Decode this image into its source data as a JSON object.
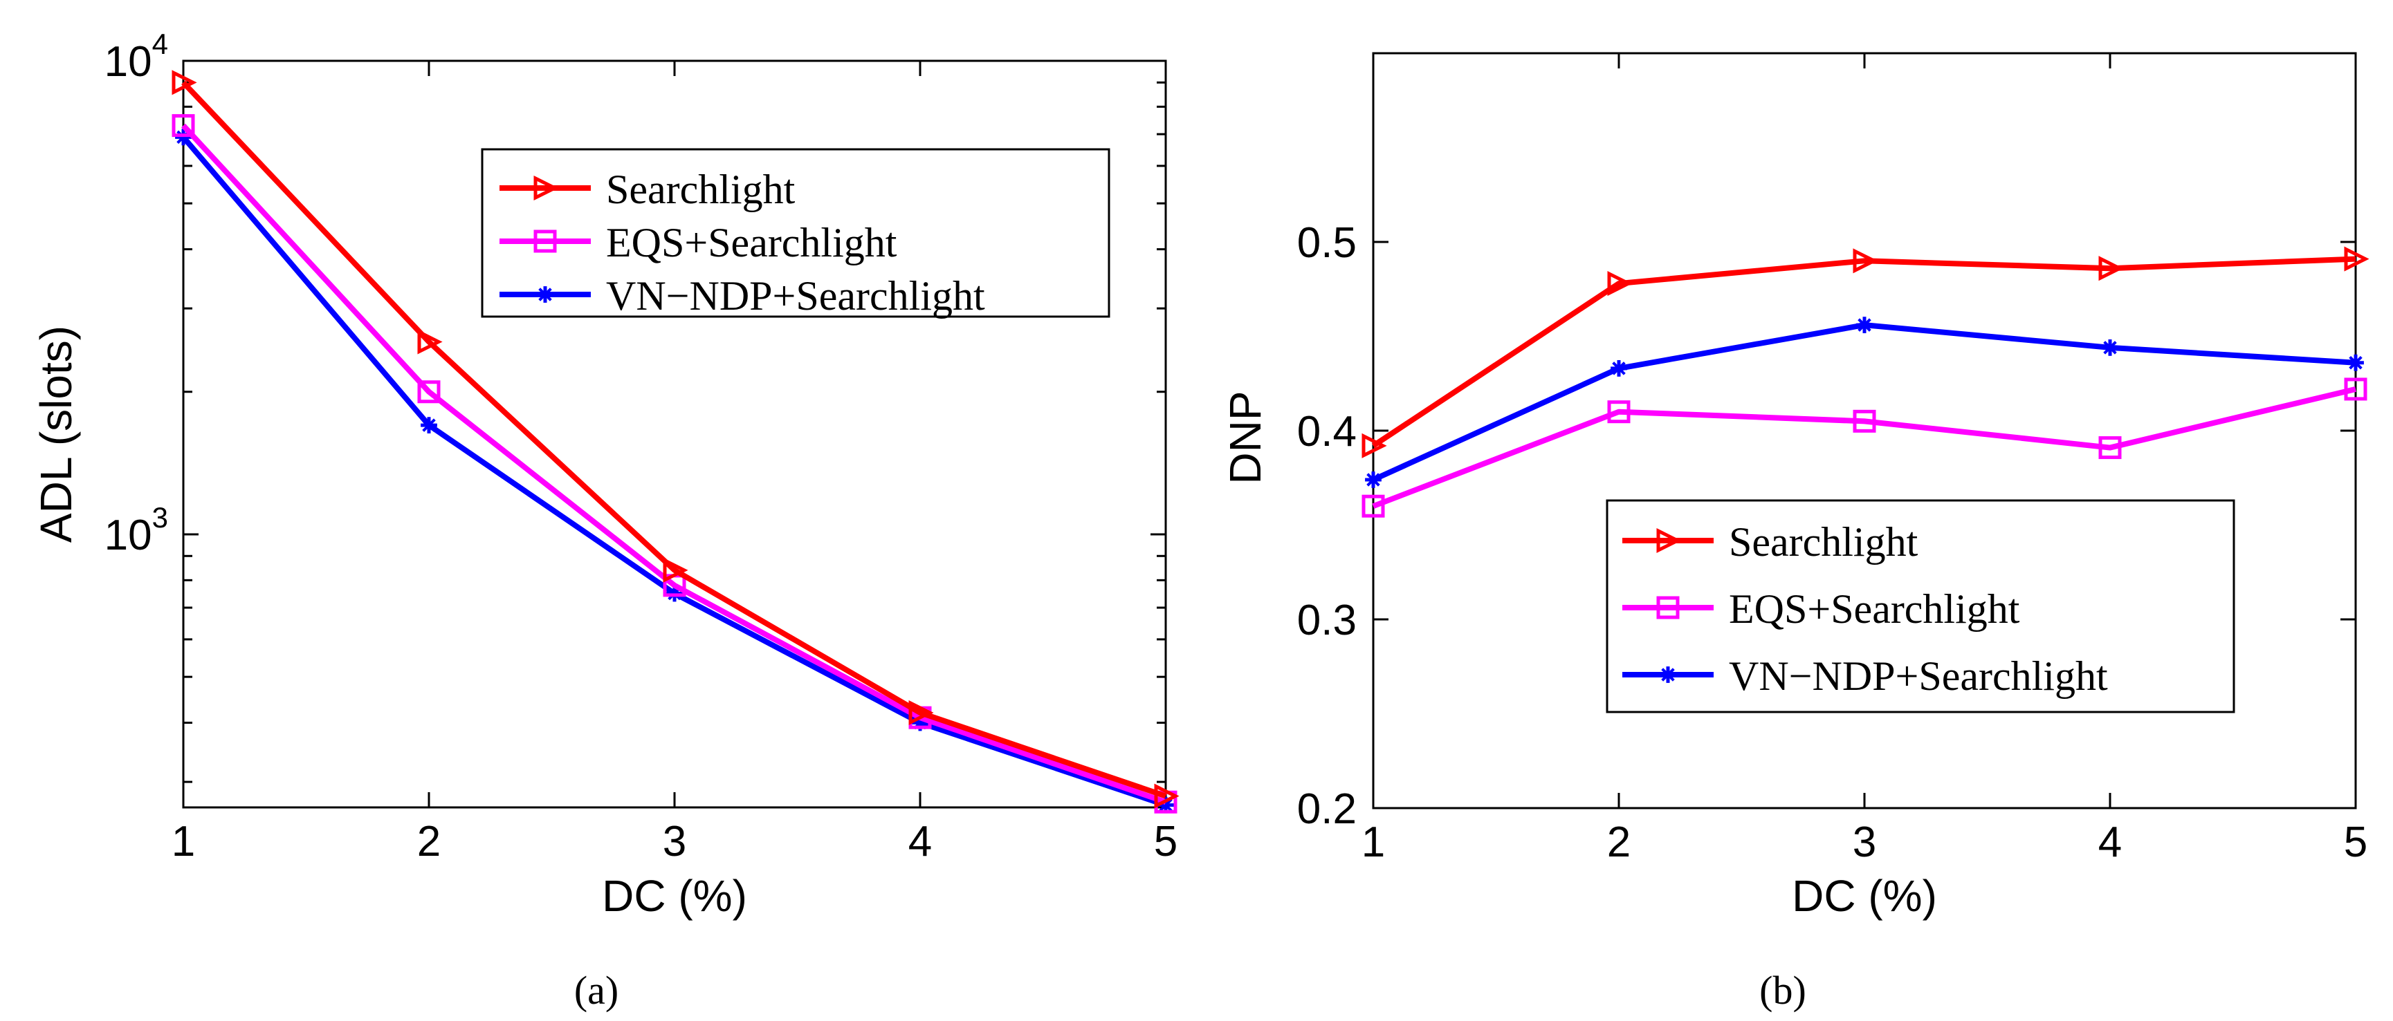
{
  "chart_data": [
    {
      "type": "line",
      "caption": "(a)",
      "xlabel": "DC (%)",
      "ylabel": "ADL (slots)",
      "yscale": "log",
      "xlim": [
        1,
        5
      ],
      "ylim": [
        265,
        10000
      ],
      "xticks": [
        "1",
        "2",
        "3",
        "4",
        "5"
      ],
      "yticks": [
        {
          "base": "10",
          "exp": "3",
          "value": 1000
        },
        {
          "base": "10",
          "exp": "4",
          "value": 10000
        }
      ],
      "legend_position": "top-right",
      "x": [
        1,
        2,
        3,
        4,
        5
      ],
      "series": [
        {
          "name": "Searchlight",
          "color": "#ff0000",
          "marker": "triangle-right",
          "values": [
            9000,
            2550,
            840,
            420,
            280
          ]
        },
        {
          "name": "EQS+Searchlight",
          "color": "#ff00ff",
          "marker": "square",
          "values": [
            7300,
            2000,
            780,
            410,
            272
          ]
        },
        {
          "name": "VN−NDP+Searchlight",
          "color": "#0000ff",
          "marker": "star",
          "values": [
            6900,
            1700,
            750,
            400,
            268
          ]
        }
      ]
    },
    {
      "type": "line",
      "caption": "(b)",
      "xlabel": "DC (%)",
      "ylabel": "DNP",
      "xlim": [
        1,
        5
      ],
      "ylim": [
        0.2,
        0.6
      ],
      "xticks": [
        "1",
        "2",
        "3",
        "4",
        "5"
      ],
      "yticks": [
        "0.2",
        "0.3",
        "0.4",
        "0.5"
      ],
      "legend_position": "lower-center",
      "x": [
        1,
        2,
        3,
        4,
        5
      ],
      "series": [
        {
          "name": "Searchlight",
          "color": "#ff0000",
          "marker": "triangle-right",
          "values": [
            0.392,
            0.478,
            0.49,
            0.486,
            0.491
          ]
        },
        {
          "name": "EQS+Searchlight",
          "color": "#ff00ff",
          "marker": "square",
          "values": [
            0.36,
            0.41,
            0.405,
            0.391,
            0.422
          ]
        },
        {
          "name": "VN−NDP+Searchlight",
          "color": "#0000ff",
          "marker": "star",
          "values": [
            0.374,
            0.433,
            0.456,
            0.444,
            0.436
          ]
        }
      ]
    }
  ]
}
